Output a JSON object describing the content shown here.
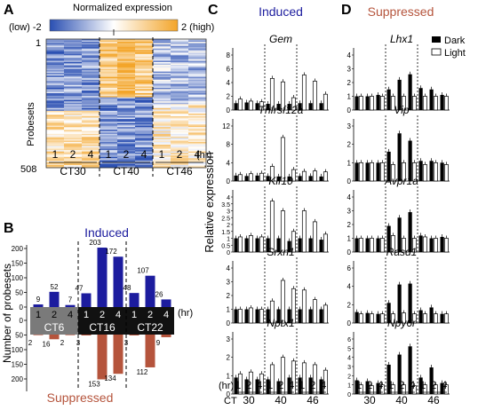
{
  "panel_letters": {
    "a": "A",
    "b": "B",
    "c": "C",
    "d": "D"
  },
  "colors": {
    "induced": "#1c1c9e",
    "suppressed": "#b5543c",
    "dark_bar": "#000000",
    "light_bar": "#ffffff"
  },
  "panelA": {
    "colorbar_title": "Normalized expression",
    "colorbar_low": "(low) -2",
    "colorbar_high": "2 (high)",
    "ylabel": "Probesets",
    "y_top": "1",
    "y_bottom": "508",
    "hr_unit": "(hr)",
    "hours": [
      "1",
      "2",
      "4",
      "1",
      "2",
      "4",
      "1",
      "2",
      "4"
    ],
    "ct_labels": [
      "CT30",
      "CT40",
      "CT46"
    ]
  },
  "panelB": {
    "title_induced": "Induced",
    "title_suppressed": "Suppressed",
    "ylabel": "Number of probesets",
    "hr_unit": "(hr)",
    "hours": [
      "1",
      "2",
      "4",
      "1",
      "2",
      "4",
      "1",
      "2",
      "4"
    ],
    "ct_labels": [
      "CT6",
      "CT16",
      "CT22"
    ],
    "yticks": [
      "200",
      "150",
      "100",
      "50",
      "0",
      "50",
      "100",
      "150",
      "200"
    ]
  },
  "panelC": {
    "title": "Induced",
    "ylabel": "Relative expression"
  },
  "panelD": {
    "title": "Suppressed",
    "legend_dark": "Dark",
    "legend_light": "Light"
  },
  "bottom_axis": {
    "hr_label": "(hr)",
    "ct_label": "CT",
    "hours": [
      "1",
      "2",
      "4",
      "1",
      "2",
      "4",
      "1",
      "2",
      "4"
    ],
    "ct_values": [
      "30",
      "40",
      "46"
    ]
  },
  "chart_data": [
    {
      "type": "bar",
      "title": "Induced",
      "categories": [
        "CT6 1",
        "CT6 2",
        "CT6 4",
        "CT16 1",
        "CT16 2",
        "CT16 4",
        "CT22 1",
        "CT22 2",
        "CT22 4"
      ],
      "series": [
        {
          "name": "Induced",
          "values": [
            9,
            52,
            7,
            47,
            203,
            172,
            48,
            107,
            26
          ]
        },
        {
          "name": "Suppressed",
          "values": [
            2,
            16,
            2,
            3,
            153,
            134,
            3,
            112,
            9
          ]
        }
      ],
      "ylim": [
        -200,
        200
      ],
      "ylabel": "Number of probesets"
    },
    {
      "type": "bar",
      "categories": [
        "30-1",
        "30-2",
        "30-4",
        "40-1",
        "40-2",
        "40-4",
        "46-1",
        "46-2",
        "46-4"
      ],
      "genes": [
        {
          "name": "Gem",
          "yticks": [
            "8",
            "6",
            "4",
            "2",
            "0"
          ],
          "ymax": 8,
          "dark": [
            1.0,
            1.1,
            1.0,
            0.9,
            0.9,
            0.9,
            1.0,
            1.0,
            1.0
          ],
          "light": [
            1.6,
            1.3,
            1.2,
            4.6,
            4.1,
            1.8,
            5.1,
            4.2,
            2.3
          ]
        },
        {
          "name": "Tnfrsf12a",
          "yticks": [
            "12",
            "8",
            "4",
            "0"
          ],
          "ymax": 12,
          "dark": [
            1.2,
            1.1,
            1.2,
            1.1,
            1.0,
            1.0,
            1.1,
            1.1,
            1.0
          ],
          "light": [
            1.4,
            1.6,
            1.7,
            3.2,
            9.5,
            2.5,
            2.1,
            2.2,
            2.0
          ]
        },
        {
          "name": "Klf10",
          "yticks": [
            "4",
            "3.5",
            "3",
            "2.5",
            "2",
            "1.5",
            "1",
            "0.5",
            "0"
          ],
          "ymax": 4,
          "dark": [
            1.0,
            1.0,
            1.0,
            1.0,
            1.0,
            0.8,
            1.0,
            1.0,
            0.9
          ],
          "light": [
            1.1,
            1.2,
            1.1,
            3.7,
            3.0,
            1.5,
            3.0,
            2.2,
            1.3
          ]
        },
        {
          "name": "Srxn1",
          "yticks": [
            "4",
            "3",
            "2",
            "1",
            "0"
          ],
          "ymax": 4,
          "dark": [
            1.0,
            1.0,
            1.0,
            1.0,
            1.0,
            1.0,
            1.0,
            1.0,
            1.0
          ],
          "light": [
            1.0,
            1.1,
            1.0,
            1.6,
            3.1,
            2.5,
            2.4,
            1.7,
            1.3
          ]
        },
        {
          "name": "Nptx1",
          "yticks": [
            "3",
            "2",
            "1",
            "0"
          ],
          "ymax": 3,
          "dark": [
            0.9,
            0.8,
            0.8,
            0.8,
            0.7,
            0.9,
            0.9,
            0.9,
            0.8
          ],
          "light": [
            1.1,
            1.2,
            1.1,
            1.6,
            2.0,
            1.8,
            1.7,
            1.6,
            1.3
          ]
        }
      ]
    },
    {
      "type": "bar",
      "categories": [
        "30-1",
        "30-2",
        "30-4",
        "40-1",
        "40-2",
        "40-4",
        "46-1",
        "46-2",
        "46-4"
      ],
      "genes": [
        {
          "name": "Lhx1",
          "yticks": [
            "4",
            "3",
            "2",
            "1",
            "0"
          ],
          "ymax": 4,
          "dark": [
            1.0,
            1.0,
            1.1,
            1.5,
            2.2,
            2.6,
            1.6,
            1.5,
            1.1
          ],
          "light": [
            1.0,
            1.0,
            1.0,
            1.0,
            1.0,
            1.0,
            1.0,
            1.0,
            1.0
          ]
        },
        {
          "name": "Vip",
          "yticks": [
            "3",
            "2",
            "1",
            "0"
          ],
          "ymax": 3,
          "dark": [
            1.0,
            1.0,
            1.0,
            1.6,
            2.6,
            2.2,
            1.1,
            1.1,
            1.0
          ],
          "light": [
            1.0,
            1.0,
            1.0,
            0.9,
            1.0,
            1.0,
            0.9,
            1.0,
            0.9
          ]
        },
        {
          "name": "Avpr1a",
          "yticks": [
            "4",
            "3",
            "2",
            "1",
            "0"
          ],
          "ymax": 4,
          "dark": [
            1.0,
            1.0,
            1.0,
            1.9,
            2.5,
            2.9,
            1.2,
            1.0,
            1.1
          ],
          "light": [
            1.0,
            1.0,
            1.0,
            1.2,
            1.0,
            1.0,
            1.1,
            1.0,
            1.0
          ]
        },
        {
          "name": "Rasd1",
          "yticks": [
            "6",
            "4",
            "2",
            "0"
          ],
          "ymax": 6,
          "dark": [
            1.2,
            1.1,
            1.0,
            2.2,
            4.2,
            4.3,
            1.4,
            1.7,
            1.0
          ],
          "light": [
            1.0,
            1.0,
            1.0,
            1.0,
            1.1,
            1.0,
            1.0,
            1.0,
            1.0
          ]
        },
        {
          "name": "Npy6r",
          "yticks": [
            "6",
            "5",
            "4",
            "3",
            "2",
            "1",
            "0"
          ],
          "ymax": 6,
          "dark": [
            1.5,
            1.4,
            1.2,
            3.2,
            4.3,
            5.2,
            1.8,
            2.9,
            1.2
          ],
          "light": [
            1.0,
            0.9,
            1.0,
            1.0,
            1.0,
            0.9,
            1.0,
            1.0,
            1.0
          ]
        }
      ]
    }
  ]
}
